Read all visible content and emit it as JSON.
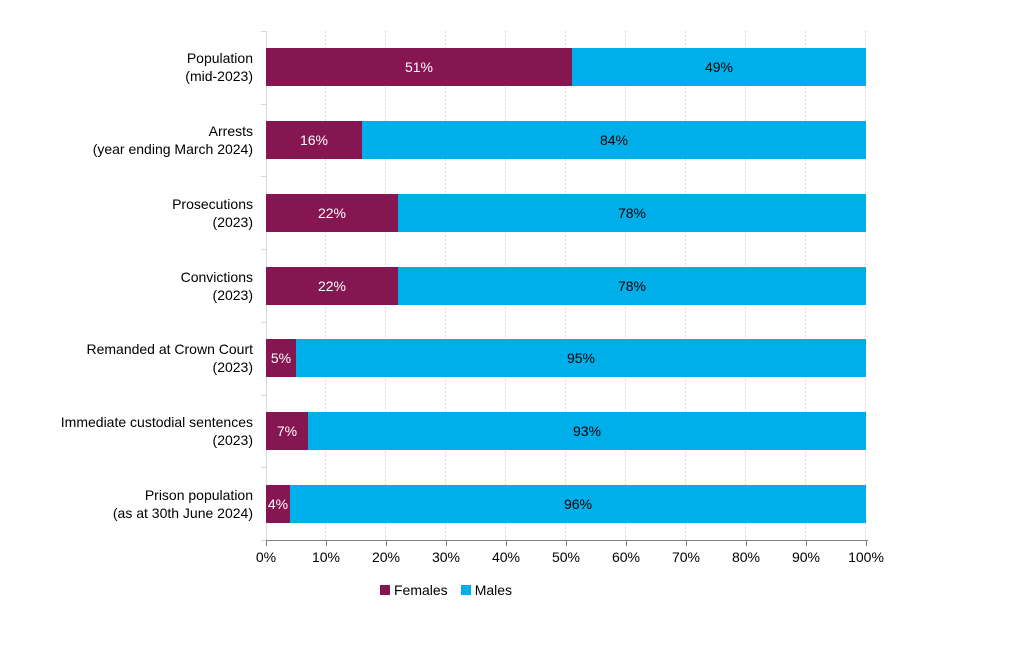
{
  "chart_data": {
    "type": "bar",
    "orientation": "horizontal",
    "stacked": true,
    "unit": "%",
    "categories": [
      {
        "lines": [
          "Population",
          "(mid-2023)"
        ]
      },
      {
        "lines": [
          "Arrests",
          "(year ending March 2024)"
        ]
      },
      {
        "lines": [
          "Prosecutions",
          "(2023)"
        ]
      },
      {
        "lines": [
          "Convictions",
          "(2023)"
        ]
      },
      {
        "lines": [
          "Remanded at Crown Court",
          "(2023)"
        ]
      },
      {
        "lines": [
          "Immediate custodial sentences",
          "(2023)"
        ]
      },
      {
        "lines": [
          "Prison population",
          "(as at 30th June 2024)"
        ]
      }
    ],
    "series": [
      {
        "name": "Females",
        "color": "#861652",
        "label_color": "#FFFFFF",
        "values": [
          51,
          16,
          22,
          22,
          5,
          7,
          4
        ],
        "labels": [
          "51%",
          "16%",
          "22%",
          "22%",
          "5%",
          "7%",
          "4%"
        ]
      },
      {
        "name": "Males",
        "color": "#00AEEA",
        "label_color": "#000000",
        "values": [
          49,
          84,
          78,
          78,
          95,
          93,
          96
        ],
        "labels": [
          "49%",
          "84%",
          "78%",
          "78%",
          "95%",
          "93%",
          "96%"
        ]
      }
    ],
    "x_axis": {
      "min": 0,
      "max": 100,
      "tick_step": 10,
      "tick_labels": [
        "0%",
        "10%",
        "20%",
        "30%",
        "40%",
        "50%",
        "60%",
        "70%",
        "80%",
        "90%",
        "100%"
      ]
    },
    "grid": {
      "show": true,
      "style": "dashed",
      "color": "#D9D9D9"
    },
    "axis_line_color": "#7F7F7F",
    "legend": {
      "position": "bottom",
      "entries": [
        {
          "label": "Females",
          "color": "#861652"
        },
        {
          "label": "Males",
          "color": "#00AEEA"
        }
      ]
    }
  }
}
